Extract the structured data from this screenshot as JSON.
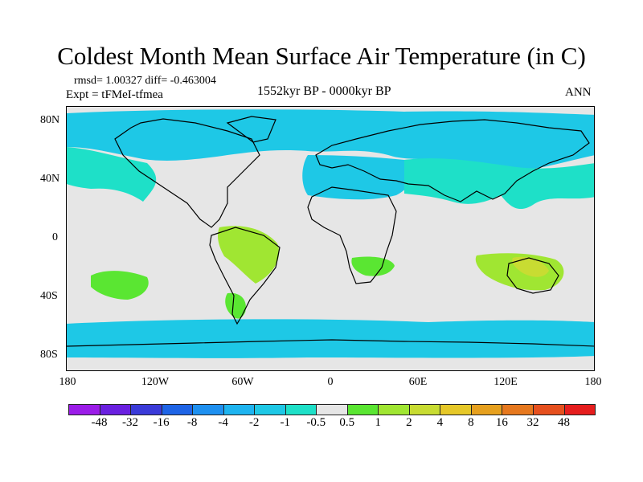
{
  "title": "Coldest Month Mean Surface Air Temperature (in C)",
  "stats": "rmsd= 1.00327 diff= -0.463004",
  "experiment": "Expt = tFMeI-tfmea",
  "period": "1552kyr BP - 0000kyr BP",
  "season": "ANN",
  "map": {
    "lat_labels": [
      "80N",
      "40N",
      "0",
      "40S",
      "80S"
    ],
    "lon_labels": [
      "180",
      "120W",
      "60W",
      "0",
      "60E",
      "120E",
      "180"
    ],
    "ocean_color": "#e6e6e6",
    "coastline_color": "#000000"
  },
  "colorbar": {
    "colors": [
      "#9b1ce8",
      "#6a20e0",
      "#3a3ad8",
      "#1e64e6",
      "#1e90f0",
      "#1eb4f0",
      "#1ec8e6",
      "#1ee0c8",
      "#e6e6e6",
      "#5ae632",
      "#a0e632",
      "#c8dc32",
      "#e6c828",
      "#e6a01e",
      "#e6781e",
      "#e6501e",
      "#e61e1e"
    ],
    "labels": [
      "-48",
      "-32",
      "-16",
      "-8",
      "-4",
      "-2",
      "-1",
      "-0.5",
      "0.5",
      "1",
      "2",
      "4",
      "8",
      "16",
      "32",
      "48"
    ]
  }
}
